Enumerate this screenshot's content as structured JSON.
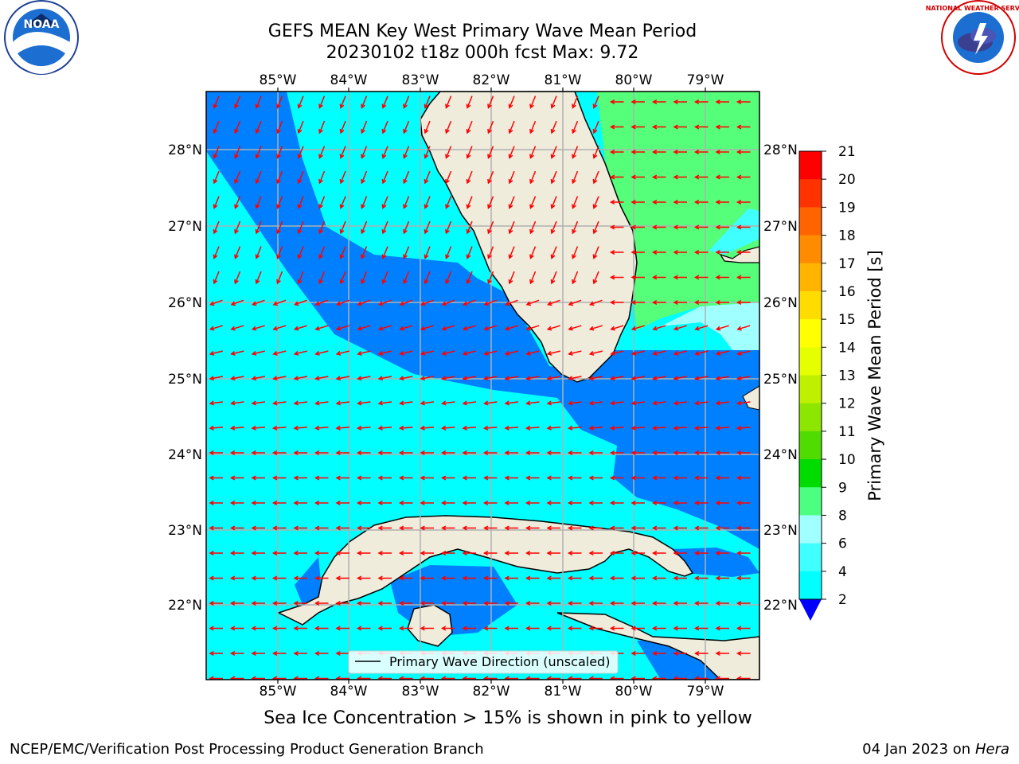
{
  "title": {
    "line1": "GEFS MEAN Key West Primary Wave Mean Period",
    "line2": "20230102 t18z 000h fcst    Max: 9.72"
  },
  "map": {
    "lon_labels": [
      "85°W",
      "84°W",
      "83°W",
      "82°W",
      "81°W",
      "80°W",
      "79°W"
    ],
    "lat_labels": [
      "28°N",
      "27°N",
      "26°N",
      "25°N",
      "24°N",
      "23°N",
      "22°N"
    ],
    "legend_text": "Primary Wave Direction (unscaled)",
    "colors": {
      "land": "#efecdc",
      "sea_cyan": "#00ffff",
      "sea_blue": "#0080ff",
      "sea_green": "#55ff7a",
      "arrow": "#ff0000",
      "grid": "#b0b0b0"
    }
  },
  "colorbar": {
    "label": "Primary Wave Mean Period [s]",
    "ticks": [
      "21",
      "20",
      "19",
      "18",
      "17",
      "16",
      "15",
      "14",
      "13",
      "12",
      "11",
      "10",
      "9",
      "8",
      "6",
      "4",
      "2"
    ],
    "colors": [
      "#ff0000",
      "#ff3200",
      "#ff6400",
      "#ff8c00",
      "#ffb400",
      "#ffdc00",
      "#ffff00",
      "#e6ff00",
      "#bef000",
      "#8ce600",
      "#50dc00",
      "#00dc00",
      "#4cff80",
      "#a0ffff",
      "#40ffff",
      "#00ffff",
      "#0080ff",
      "#0000ff"
    ]
  },
  "note": "Sea Ice Concentration > 15% is shown in pink to yellow",
  "footer": {
    "left": "NCEP/EMC/Verification Post Processing Product Generation Branch",
    "right_date": "04 Jan 2023 on",
    "right_host": "Hera"
  },
  "logos": {
    "noaa_text": "NOAA",
    "nws_text": "NATIONAL WEATHER SERVICE"
  }
}
